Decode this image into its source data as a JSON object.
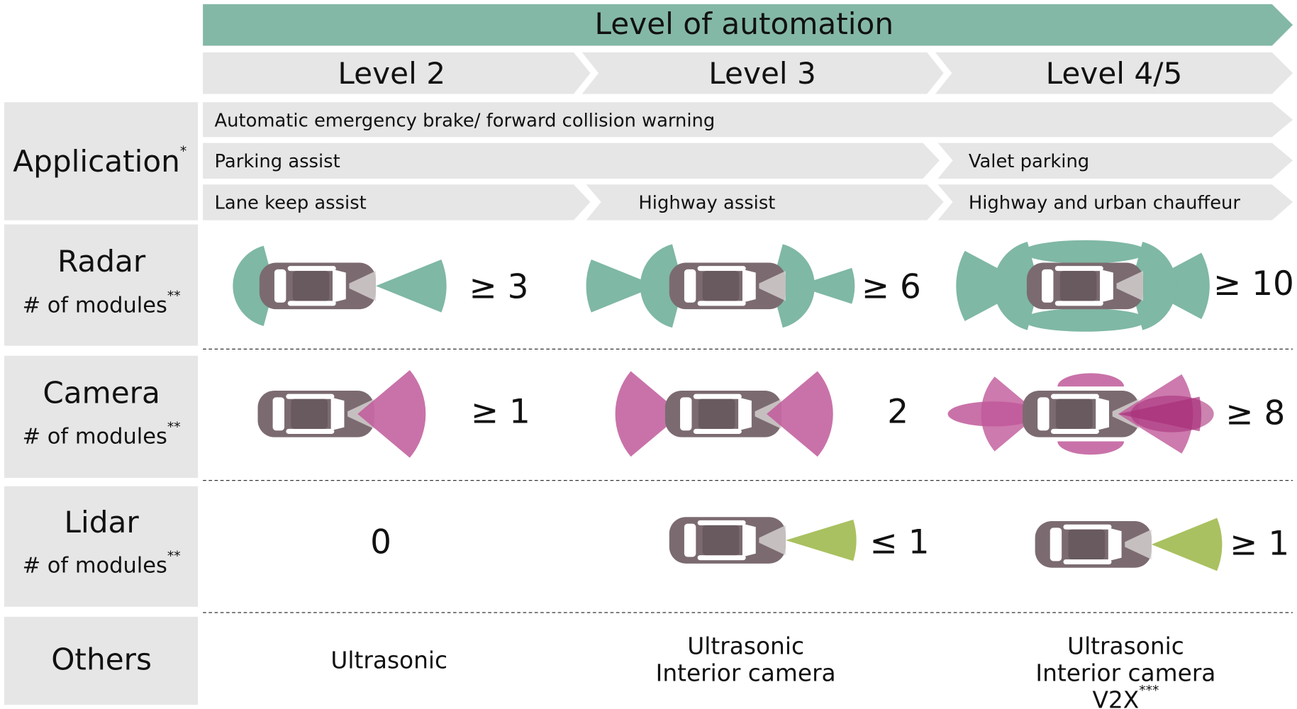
{
  "header": {
    "title": "Level of automation",
    "levels": [
      "Level 2",
      "Level 3",
      "Level 4/5"
    ]
  },
  "application": {
    "label": "Application",
    "mark": "*",
    "items": [
      [
        "Automatic emergency brake/ forward collision warning"
      ],
      [
        "Parking assist",
        "Valet parking"
      ],
      [
        "Lane keep assist",
        "Highway assist",
        "Highway and urban chauffeur"
      ]
    ]
  },
  "sensors": [
    {
      "label": "Radar",
      "sublabel": "# of modules",
      "mark": "**",
      "counts": [
        "≥ 3",
        "≥ 6",
        "≥ 10"
      ]
    },
    {
      "label": "Camera",
      "sublabel": "# of modules",
      "mark": "**",
      "counts": [
        "≥ 1",
        "2",
        "≥ 8"
      ]
    },
    {
      "label": "Lidar",
      "sublabel": "# of modules",
      "mark": "**",
      "counts": [
        "0",
        "≤ 1",
        "≥ 1"
      ]
    }
  ],
  "others": {
    "label": "Others",
    "mark": "***",
    "items": [
      [
        "Ultrasonic"
      ],
      [
        "Ultrasonic",
        "Interior camera"
      ],
      [
        "Ultrasonic",
        "Interior camera",
        "V2X"
      ]
    ]
  }
}
